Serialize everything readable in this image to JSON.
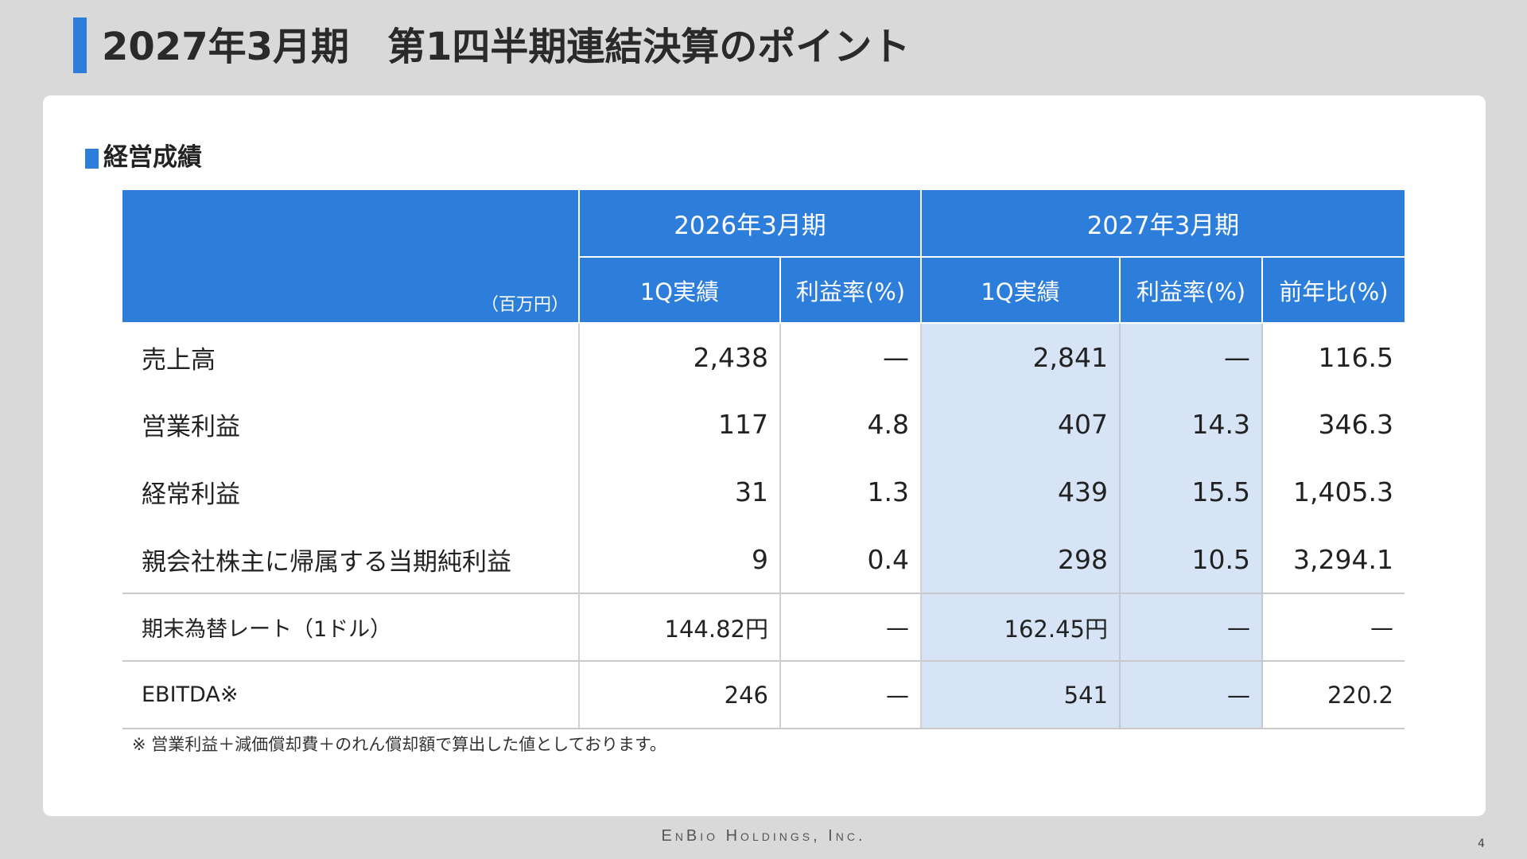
{
  "page": {
    "title": "2027年3月期　第1四半期連結決算のポイント",
    "section_title": "経営成績",
    "footnote": "※ 営業利益＋減価償却費＋のれん償却額で算出した値としております。",
    "brand": "EnBio Holdings, Inc.",
    "page_number": "4"
  },
  "table": {
    "unit": "（百万円）",
    "periods": [
      "2026年3月期",
      "2027年3月期"
    ],
    "subheaders": [
      "1Q実績",
      "利益率(%)",
      "1Q実績",
      "利益率(%)",
      "前年比(%)"
    ],
    "rows": [
      {
        "label": "売上高",
        "cells": [
          "2,438",
          "—",
          "2,841",
          "—",
          "116.5"
        ]
      },
      {
        "label": "営業利益",
        "cells": [
          "117",
          "4.8",
          "407",
          "14.3",
          "346.3"
        ]
      },
      {
        "label": "経常利益",
        "cells": [
          "31",
          "1.3",
          "439",
          "15.5",
          "1,405.3"
        ]
      },
      {
        "label": "親会社株主に帰属する当期純利益",
        "cells": [
          "9",
          "0.4",
          "298",
          "10.5",
          "3,294.1"
        ]
      },
      {
        "label": "期末為替レート（1ドル）",
        "cells": [
          "144.82円",
          "—",
          "162.45円",
          "—",
          "—"
        ]
      },
      {
        "label": "EBITDA※",
        "cells": [
          "246",
          "—",
          "541",
          "—",
          "220.2"
        ]
      }
    ]
  },
  "colors": {
    "accent": "#2d7ddb",
    "highlight": "#d6e4f6",
    "background": "#d9d9d9"
  }
}
